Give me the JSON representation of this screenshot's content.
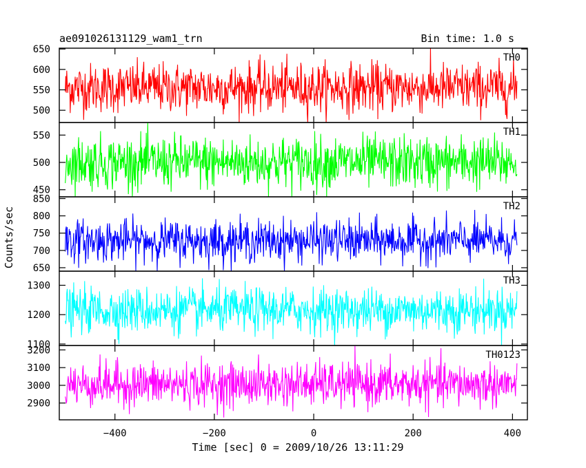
{
  "header": {
    "title": "ae091026131129_wam1_trn",
    "bin_time": "Bin time: 1.0 s"
  },
  "chart_data": {
    "type": "line",
    "xlabel": "Time [sec] 0 = 2009/10/26 13:11:29",
    "ylabel": "Counts/sec",
    "xlim": [
      -512,
      430
    ],
    "xticks": [
      -400,
      -200,
      0,
      200,
      400
    ],
    "x_tick_labels": [
      "−400",
      "−200",
      "0",
      "200",
      "400"
    ],
    "x_range_data": [
      -500,
      409
    ],
    "series": [
      {
        "name": "TH0",
        "color": "#ff0000",
        "ylim": [
          470,
          652
        ],
        "yticks": [
          500,
          550,
          600,
          650
        ],
        "ytick_labels": [
          "500",
          "550",
          "600",
          "650"
        ],
        "mean": 555,
        "spread": 30,
        "min": 470,
        "max": 652
      },
      {
        "name": "TH1",
        "color": "#00ff00",
        "ylim": [
          437,
          573
        ],
        "yticks": [
          450,
          500,
          550
        ],
        "ytick_labels": [
          "450",
          "500",
          "550"
        ],
        "mean": 500,
        "spread": 24,
        "min": 437,
        "max": 573
      },
      {
        "name": "TH2",
        "color": "#0000ff",
        "ylim": [
          640,
          855
        ],
        "yticks": [
          650,
          700,
          750,
          800,
          850
        ],
        "ytick_labels": [
          "650",
          "700",
          "750",
          "800",
          "850"
        ],
        "mean": 728,
        "spread": 30,
        "min": 640,
        "max": 855
      },
      {
        "name": "TH3",
        "color": "#00ffff",
        "ylim": [
          1095,
          1348
        ],
        "yticks": [
          1100,
          1200,
          1300
        ],
        "ytick_labels": [
          "1100",
          "1200",
          "1300"
        ],
        "mean": 1215,
        "spread": 38,
        "min": 1095,
        "max": 1348
      },
      {
        "name": "TH0123",
        "color": "#ff00ff",
        "ylim": [
          2805,
          3225
        ],
        "yticks": [
          2900,
          3000,
          3100,
          3200
        ],
        "ytick_labels": [
          "2900",
          "3000",
          "3100",
          "3200"
        ],
        "mean": 3005,
        "spread": 62,
        "min": 2805,
        "max": 3225
      }
    ]
  }
}
